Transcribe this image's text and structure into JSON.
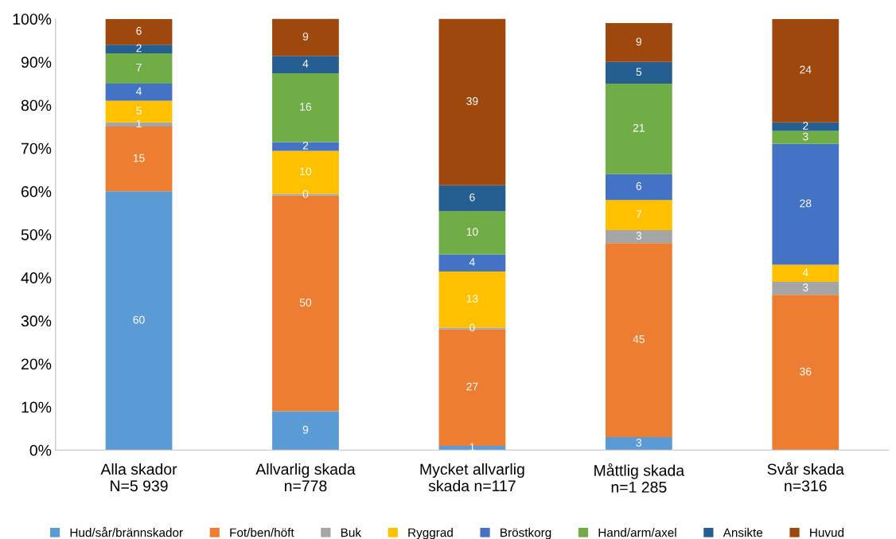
{
  "chart_data": {
    "type": "bar",
    "stacked": true,
    "categories": [
      "Alla skador\nN=5 939",
      "Allvarlig skada\nn=778",
      "Mycket allvarlig\nskada n=117",
      "Måttlig skada\nn=1 285",
      "Svår skada\nn=316"
    ],
    "ylim": [
      0,
      100
    ],
    "yticks": [
      {
        "value": 0,
        "label": "0%"
      },
      {
        "value": 10,
        "label": "10%"
      },
      {
        "value": 20,
        "label": "20%"
      },
      {
        "value": 30,
        "label": "30%"
      },
      {
        "value": 40,
        "label": "40%"
      },
      {
        "value": 50,
        "label": "50%"
      },
      {
        "value": 60,
        "label": "60%"
      },
      {
        "value": 70,
        "label": "70%"
      },
      {
        "value": 80,
        "label": "80%"
      },
      {
        "value": 90,
        "label": "90%"
      },
      {
        "value": 100,
        "label": "100%"
      }
    ],
    "grid": false,
    "legend": "bottom",
    "series": [
      {
        "name": "Hud/sår/brännskador",
        "color": "#5b9bd5",
        "values": [
          60,
          9,
          1,
          3,
          0
        ],
        "value_labels": [
          "60",
          "9",
          "1",
          "3",
          null
        ]
      },
      {
        "name": "Fot/ben/höft",
        "color": "#ed7d31",
        "values": [
          15,
          50,
          27,
          45,
          36
        ],
        "value_labels": [
          "15",
          "50",
          "27",
          "45",
          "36"
        ]
      },
      {
        "name": "Buk",
        "color": "#a5a5a5",
        "values": [
          1,
          0.4,
          0.4,
          3,
          3
        ],
        "value_labels": [
          "1",
          "0",
          "0",
          "3",
          "3"
        ]
      },
      {
        "name": "Ryggrad",
        "color": "#ffc000",
        "values": [
          5,
          10,
          13,
          7,
          4
        ],
        "value_labels": [
          "5",
          "10",
          "13",
          "7",
          "4"
        ]
      },
      {
        "name": "Bröstkorg",
        "color": "#4472c4",
        "values": [
          4,
          2,
          4,
          6,
          28
        ],
        "value_labels": [
          "4",
          "2",
          "4",
          "6",
          "28"
        ]
      },
      {
        "name": "Hand/arm/axel",
        "color": "#70ad47",
        "values": [
          7,
          16,
          10,
          21,
          3
        ],
        "value_labels": [
          "7",
          "16",
          "10",
          "21",
          "3"
        ]
      },
      {
        "name": "Ansikte",
        "color": "#255e91",
        "values": [
          2,
          4,
          6,
          5,
          2
        ],
        "value_labels": [
          "2",
          "4",
          "6",
          "5",
          "2"
        ]
      },
      {
        "name": "Huvud",
        "color": "#9e480e",
        "values": [
          6,
          9,
          39,
          9,
          24
        ],
        "value_labels": [
          "6",
          "9",
          "39",
          "9",
          "24"
        ]
      }
    ]
  }
}
